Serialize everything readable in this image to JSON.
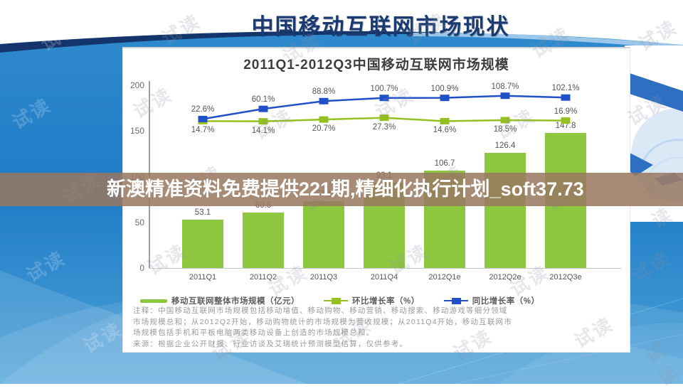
{
  "page": {
    "main_title": "中国移动互联网市场现状"
  },
  "watermark": {
    "banner_text": "新澳精准资料免费提供221期,精细化执行计划_soft37.73",
    "stamp": "试读"
  },
  "chart_data": {
    "type": "bar",
    "title": "2011Q1-2012Q3中国移动互联网市场规模",
    "categories": [
      "2011Q1",
      "2011Q2",
      "2011Q3",
      "2011Q4",
      "2012Q1e",
      "2012Q2e",
      "2012Q3e"
    ],
    "series": [
      {
        "name": "移动互联网整体市场规模（亿元）",
        "type": "bar",
        "color": "#8dc63f",
        "values": [
          53.1,
          60.6,
          73.1,
          93.1,
          106.7,
          126.4,
          147.8
        ]
      },
      {
        "name": "环比增长率（%）",
        "type": "line",
        "color": "#94c11f",
        "values": [
          14.7,
          14.1,
          20.7,
          27.3,
          14.6,
          18.5,
          16.9
        ]
      },
      {
        "name": "同比增长率（%）",
        "type": "line",
        "color": "#2050c8",
        "values": [
          22.6,
          60.1,
          88.8,
          100.7,
          100.9,
          108.7,
          102.1
        ]
      }
    ],
    "y_axis": {
      "ticks": [
        0,
        50,
        100,
        150,
        200
      ],
      "max": 200
    },
    "grid": false,
    "legend_position": "bottom"
  },
  "notes": {
    "line1": "注释：中国移动互联网市场规模包括移动增值、移动购物、移动营销、移动搜索、移动游戏等细分领域",
    "line2": "市场规模总和；从2012Q2开始，移动购物统计的市场规模为营收规模；从2011Q4开始，移动互联网市",
    "line3": "场规模包括手机和平板电脑两类移动设备上创造的市场规模总和。",
    "line4": "来源：根据企业公开财报、行业访谈及艾瑞统计预测模型估算，仅供参考。"
  },
  "colors": {
    "bar_green": "#8dc63f",
    "line_green": "#94c11f",
    "line_blue": "#2050c8",
    "title_navy": "#1b3a70",
    "banner_brown": "#987861",
    "bg_blue": "#1f7cc6"
  }
}
